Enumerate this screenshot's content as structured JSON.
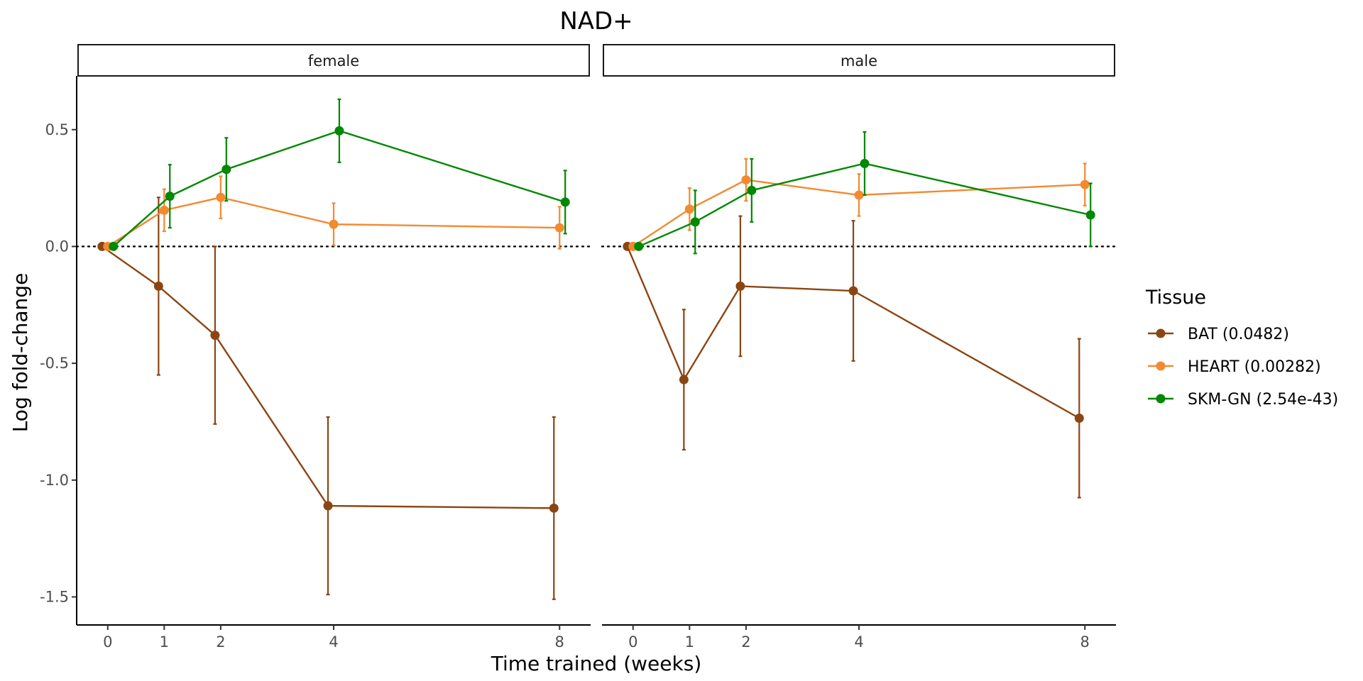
{
  "chart_data": {
    "type": "line",
    "title": "NAD+",
    "xlabel": "Time trained (weeks)",
    "ylabel": "Log fold-change",
    "x_ticks": [
      0,
      1,
      2,
      4,
      8
    ],
    "y_ticks": [
      0.5,
      0.0,
      -0.5,
      -1.0,
      -1.5
    ],
    "y_tick_labels": [
      "0.5",
      "0.0",
      "-0.5",
      "-1.0",
      "-1.5"
    ],
    "xlim": [
      -0.55,
      8.55
    ],
    "ylim": [
      -1.62,
      0.73
    ],
    "reference_line": 0,
    "legend": {
      "title": "Tissue",
      "placement": "right"
    },
    "series_info": [
      {
        "name": "BAT (0.0482)",
        "color": "#8B4513"
      },
      {
        "name": "HEART (0.00282)",
        "color": "#F28A30"
      },
      {
        "name": "SKM-GN (2.54e-43)",
        "color": "#008800"
      }
    ],
    "panels": [
      {
        "label": "female",
        "series": [
          {
            "name": "BAT (0.0482)",
            "points": [
              {
                "x": 0,
                "y": 0.0,
                "lo": 0.0,
                "hi": 0.0
              },
              {
                "x": 1,
                "y": -0.17,
                "lo": -0.55,
                "hi": 0.21
              },
              {
                "x": 2,
                "y": -0.38,
                "lo": -0.76,
                "hi": 0.0
              },
              {
                "x": 4,
                "y": -1.11,
                "lo": -1.49,
                "hi": -0.73
              },
              {
                "x": 8,
                "y": -1.12,
                "lo": -1.51,
                "hi": -0.73
              }
            ]
          },
          {
            "name": "HEART (0.00282)",
            "points": [
              {
                "x": 0,
                "y": 0.0,
                "lo": 0.0,
                "hi": 0.0
              },
              {
                "x": 1,
                "y": 0.155,
                "lo": 0.065,
                "hi": 0.245
              },
              {
                "x": 2,
                "y": 0.21,
                "lo": 0.12,
                "hi": 0.3
              },
              {
                "x": 4,
                "y": 0.095,
                "lo": 0.005,
                "hi": 0.185
              },
              {
                "x": 8,
                "y": 0.08,
                "lo": -0.01,
                "hi": 0.17
              }
            ]
          },
          {
            "name": "SKM-GN (2.54e-43)",
            "points": [
              {
                "x": 0,
                "y": 0.0,
                "lo": 0.0,
                "hi": 0.0
              },
              {
                "x": 1,
                "y": 0.215,
                "lo": 0.08,
                "hi": 0.35
              },
              {
                "x": 2,
                "y": 0.33,
                "lo": 0.195,
                "hi": 0.465
              },
              {
                "x": 4,
                "y": 0.495,
                "lo": 0.36,
                "hi": 0.63
              },
              {
                "x": 8,
                "y": 0.19,
                "lo": 0.055,
                "hi": 0.325
              }
            ]
          }
        ]
      },
      {
        "label": "male",
        "series": [
          {
            "name": "BAT (0.0482)",
            "points": [
              {
                "x": 0,
                "y": 0.0,
                "lo": 0.0,
                "hi": 0.0
              },
              {
                "x": 1,
                "y": -0.57,
                "lo": -0.87,
                "hi": -0.27
              },
              {
                "x": 2,
                "y": -0.17,
                "lo": -0.47,
                "hi": 0.13
              },
              {
                "x": 4,
                "y": -0.19,
                "lo": -0.49,
                "hi": 0.11
              },
              {
                "x": 8,
                "y": -0.735,
                "lo": -1.075,
                "hi": -0.395
              }
            ]
          },
          {
            "name": "HEART (0.00282)",
            "points": [
              {
                "x": 0,
                "y": 0.0,
                "lo": 0.0,
                "hi": 0.0
              },
              {
                "x": 1,
                "y": 0.16,
                "lo": 0.07,
                "hi": 0.25
              },
              {
                "x": 2,
                "y": 0.285,
                "lo": 0.195,
                "hi": 0.375
              },
              {
                "x": 4,
                "y": 0.22,
                "lo": 0.13,
                "hi": 0.31
              },
              {
                "x": 8,
                "y": 0.265,
                "lo": 0.175,
                "hi": 0.355
              }
            ]
          },
          {
            "name": "SKM-GN (2.54e-43)",
            "points": [
              {
                "x": 0,
                "y": 0.0,
                "lo": 0.0,
                "hi": 0.0
              },
              {
                "x": 1,
                "y": 0.105,
                "lo": -0.03,
                "hi": 0.24
              },
              {
                "x": 2,
                "y": 0.24,
                "lo": 0.105,
                "hi": 0.375
              },
              {
                "x": 4,
                "y": 0.355,
                "lo": 0.22,
                "hi": 0.49
              },
              {
                "x": 8,
                "y": 0.135,
                "lo": 0.0,
                "hi": 0.27
              }
            ]
          }
        ]
      }
    ]
  }
}
